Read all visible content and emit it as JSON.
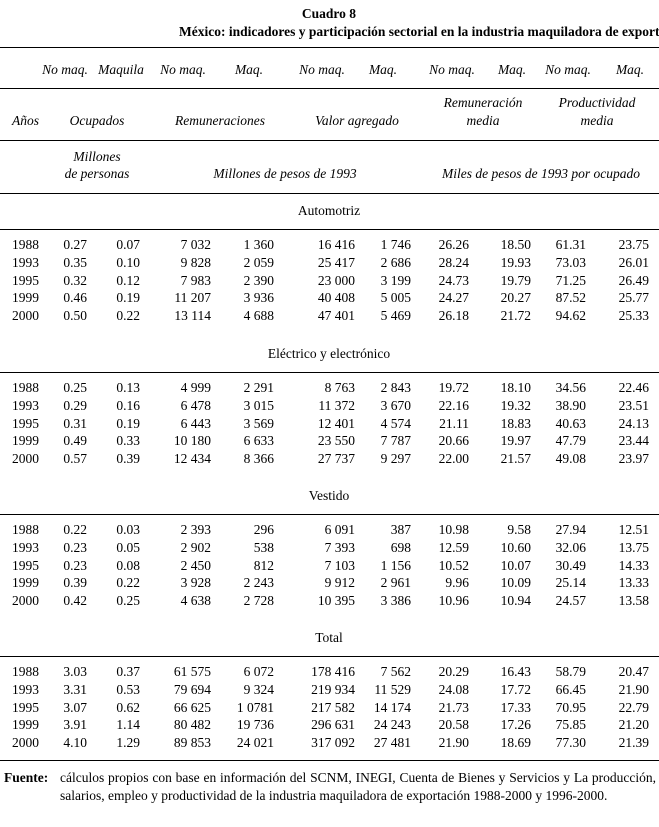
{
  "title": "Cuadro 8",
  "subtitle": "México: indicadores y participación sectorial en la industria maquiladora de exportación",
  "header": {
    "subcolumns": [
      "No maq.",
      "Maquila",
      "No maq.",
      "Maq.",
      "No maq.",
      "Maq.",
      "No maq.",
      "Maq.",
      "No maq.",
      "Maq."
    ],
    "years": "Años",
    "groups": [
      [
        "Ocupados"
      ],
      [
        "Remuneraciones"
      ],
      [
        "Valor agregado"
      ],
      [
        "Remuneración",
        "media"
      ],
      [
        "Productividad",
        "media"
      ]
    ],
    "units": [
      [
        "Millones",
        "de personas"
      ],
      [
        "Millones de pesos de 1993"
      ],
      [
        "Miles de pesos de 1993 por ocupado"
      ]
    ]
  },
  "sections": [
    {
      "name": "Automotriz",
      "rows": [
        [
          "1988",
          "0.27",
          "0.07",
          "7 032",
          "1 360",
          "16 416",
          "1 746",
          "26.26",
          "18.50",
          "61.31",
          "23.75"
        ],
        [
          "1993",
          "0.35",
          "0.10",
          "9 828",
          "2 059",
          "25 417",
          "2 686",
          "28.24",
          "19.93",
          "73.03",
          "26.01"
        ],
        [
          "1995",
          "0.32",
          "0.12",
          "7 983",
          "2 390",
          "23 000",
          "3 199",
          "24.73",
          "19.79",
          "71.25",
          "26.49"
        ],
        [
          "1999",
          "0.46",
          "0.19",
          "11 207",
          "3 936",
          "40 408",
          "5 005",
          "24.27",
          "20.27",
          "87.52",
          "25.77"
        ],
        [
          "2000",
          "0.50",
          "0.22",
          "13 114",
          "4 688",
          "47 401",
          "5 469",
          "26.18",
          "21.72",
          "94.62",
          "25.33"
        ]
      ]
    },
    {
      "name": "Eléctrico y electrónico",
      "rows": [
        [
          "1988",
          "0.25",
          "0.13",
          "4 999",
          "2 291",
          "8 763",
          "2 843",
          "19.72",
          "18.10",
          "34.56",
          "22.46"
        ],
        [
          "1993",
          "0.29",
          "0.16",
          "6 478",
          "3 015",
          "11 372",
          "3 670",
          "22.16",
          "19.32",
          "38.90",
          "23.51"
        ],
        [
          "1995",
          "0.31",
          "0.19",
          "6 443",
          "3 569",
          "12 401",
          "4 574",
          "21.11",
          "18.83",
          "40.63",
          "24.13"
        ],
        [
          "1999",
          "0.49",
          "0.33",
          "10 180",
          "6 633",
          "23 550",
          "7 787",
          "20.66",
          "19.97",
          "47.79",
          "23.44"
        ],
        [
          "2000",
          "0.57",
          "0.39",
          "12 434",
          "8 366",
          "27 737",
          "9 297",
          "22.00",
          "21.57",
          "49.08",
          "23.97"
        ]
      ]
    },
    {
      "name": "Vestido",
      "rows": [
        [
          "1988",
          "0.22",
          "0.03",
          "2 393",
          "296",
          "6 091",
          "387",
          "10.98",
          "9.58",
          "27.94",
          "12.51"
        ],
        [
          "1993",
          "0.23",
          "0.05",
          "2 902",
          "538",
          "7 393",
          "698",
          "12.59",
          "10.60",
          "32.06",
          "13.75"
        ],
        [
          "1995",
          "0.23",
          "0.08",
          "2 450",
          "812",
          "7 103",
          "1 156",
          "10.52",
          "10.07",
          "30.49",
          "14.33"
        ],
        [
          "1999",
          "0.39",
          "0.22",
          "3 928",
          "2 243",
          "9 912",
          "2 961",
          "9.96",
          "10.09",
          "25.14",
          "13.33"
        ],
        [
          "2000",
          "0.42",
          "0.25",
          "4 638",
          "2 728",
          "10 395",
          "3 386",
          "10.96",
          "10.94",
          "24.57",
          "13.58"
        ]
      ]
    },
    {
      "name": "Total",
      "rows": [
        [
          "1988",
          "3.03",
          "0.37",
          "61 575",
          "6 072",
          "178 416",
          "7 562",
          "20.29",
          "16.43",
          "58.79",
          "20.47"
        ],
        [
          "1993",
          "3.31",
          "0.53",
          "79 694",
          "9 324",
          "219 934",
          "11 529",
          "24.08",
          "17.72",
          "66.45",
          "21.90"
        ],
        [
          "1995",
          "3.07",
          "0.62",
          "66 625",
          "1 0781",
          "217 582",
          "14 174",
          "21.73",
          "17.33",
          "70.95",
          "22.79"
        ],
        [
          "1999",
          "3.91",
          "1.14",
          "80 482",
          "19 736",
          "296 631",
          "24 243",
          "20.58",
          "17.26",
          "75.85",
          "21.20"
        ],
        [
          "2000",
          "4.10",
          "1.29",
          "89 853",
          "24 021",
          "317 092",
          "27 481",
          "21.90",
          "18.69",
          "77.30",
          "21.39"
        ]
      ]
    }
  ],
  "footnote": {
    "label": "Fuente:",
    "text": "cálculos propios con base en información del SCNM, INEGI, Cuenta de Bienes y Servicios y La producción, salarios, empleo y productividad de la industria maquiladora de exportación 1988-2000 y 1996-2000."
  }
}
